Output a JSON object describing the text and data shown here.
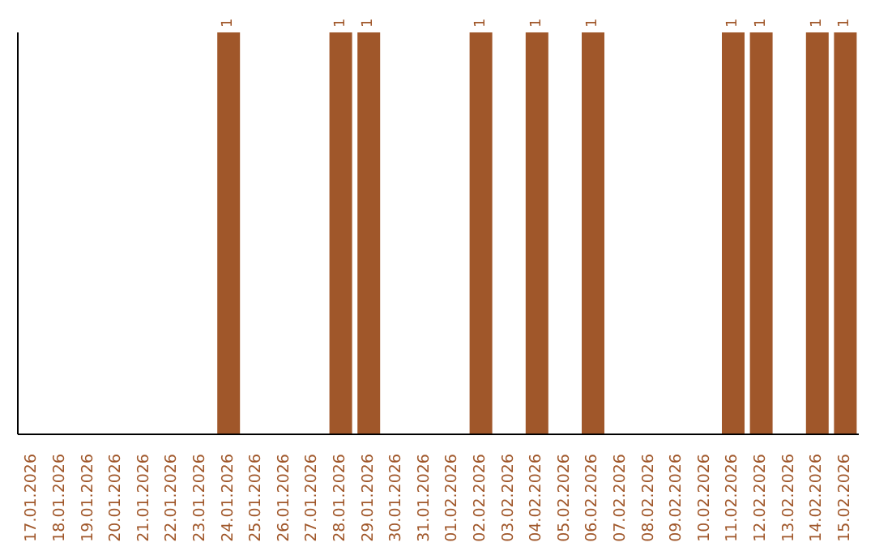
{
  "chart_data": {
    "type": "bar",
    "categories": [
      "17.01.2026",
      "18.01.2026",
      "19.01.2026",
      "20.01.2026",
      "21.01.2026",
      "22.01.2026",
      "23.01.2026",
      "24.01.2026",
      "25.01.2026",
      "26.01.2026",
      "27.01.2026",
      "28.01.2026",
      "29.01.2026",
      "30.01.2026",
      "31.01.2026",
      "01.02.2026",
      "02.02.2026",
      "03.02.2026",
      "04.02.2026",
      "05.02.2026",
      "06.02.2026",
      "07.02.2026",
      "08.02.2026",
      "09.02.2026",
      "10.02.2026",
      "11.02.2026",
      "12.02.2026",
      "13.02.2026",
      "14.02.2026",
      "15.02.2026"
    ],
    "values": [
      0,
      0,
      0,
      0,
      0,
      0,
      0,
      1,
      0,
      0,
      0,
      1,
      1,
      0,
      0,
      0,
      1,
      0,
      1,
      0,
      1,
      0,
      0,
      0,
      0,
      1,
      1,
      0,
      1,
      1
    ],
    "value_labels": [
      null,
      null,
      null,
      null,
      null,
      null,
      null,
      "1",
      null,
      null,
      null,
      "1",
      "1",
      null,
      null,
      null,
      "1",
      null,
      "1",
      null,
      "1",
      null,
      null,
      null,
      null,
      "1",
      "1",
      null,
      "1",
      "1"
    ],
    "color": "#a0572a",
    "grid": false,
    "legend": false,
    "tick_labels": "x"
  }
}
